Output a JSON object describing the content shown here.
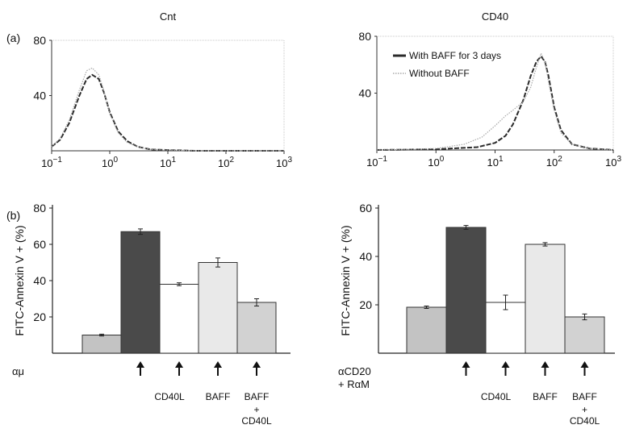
{
  "panel_labels": {
    "a": "(a)",
    "b": "(b)"
  },
  "chart_data": [
    {
      "type": "line",
      "title": "Cnt",
      "xscale": "log",
      "xlim": [
        0.1,
        1000
      ],
      "ylim": [
        0,
        80
      ],
      "x_ticks": [
        {
          "v": 0.1,
          "b": "10",
          "e": "−1"
        },
        {
          "v": 1,
          "b": "10",
          "e": "0"
        },
        {
          "v": 10,
          "b": "10",
          "e": "1"
        },
        {
          "v": 100,
          "b": "10",
          "e": "2"
        },
        {
          "v": 1000,
          "b": "10",
          "e": "3"
        }
      ],
      "y_ticks": [
        "40",
        "80"
      ],
      "series": [
        {
          "style": "dark",
          "x": [
            0.1,
            0.14,
            0.2,
            0.3,
            0.4,
            0.5,
            0.65,
            0.8,
            1.0,
            1.4,
            2.0,
            3.0,
            5.0,
            10,
            30,
            1000
          ],
          "y": [
            3,
            8,
            20,
            40,
            52,
            55,
            52,
            42,
            28,
            14,
            7,
            3,
            1,
            0.5,
            0,
            0
          ]
        },
        {
          "style": "light",
          "x": [
            0.1,
            0.14,
            0.2,
            0.3,
            0.4,
            0.5,
            0.65,
            0.8,
            1.0,
            1.4,
            2.0,
            3.0,
            5.0,
            10,
            30,
            1000
          ],
          "y": [
            3,
            9,
            22,
            44,
            58,
            60,
            55,
            43,
            27,
            13,
            6,
            3,
            1,
            0.5,
            0,
            0
          ]
        }
      ]
    },
    {
      "type": "line",
      "title": "CD40",
      "xscale": "log",
      "xlim": [
        0.1,
        1000
      ],
      "ylim": [
        0,
        80
      ],
      "x_ticks": [
        {
          "v": 0.1,
          "b": "10",
          "e": "−1"
        },
        {
          "v": 1,
          "b": "10",
          "e": "0"
        },
        {
          "v": 10,
          "b": "10",
          "e": "1"
        },
        {
          "v": 100,
          "b": "10",
          "e": "2"
        },
        {
          "v": 1000,
          "b": "10",
          "e": "3"
        }
      ],
      "y_ticks": [
        "40",
        "80"
      ],
      "legend": [
        "With BAFF for 3 days",
        "Without BAFF"
      ],
      "series": [
        {
          "name": "With BAFF for 3 days",
          "style": "dark",
          "x": [
            0.1,
            1,
            5,
            10,
            15,
            20,
            30,
            40,
            50,
            60,
            70,
            80,
            100,
            130,
            200,
            400,
            1000
          ],
          "y": [
            0,
            0.5,
            2,
            5,
            10,
            18,
            35,
            52,
            62,
            66,
            62,
            52,
            30,
            14,
            4,
            1,
            0
          ]
        },
        {
          "name": "Without BAFF",
          "style": "light",
          "x": [
            0.1,
            1,
            3,
            6,
            10,
            15,
            20,
            30,
            40,
            50,
            60,
            70,
            80,
            100,
            130,
            200,
            400,
            1000
          ],
          "y": [
            0,
            1,
            4,
            9,
            17,
            24,
            28,
            34,
            44,
            58,
            68,
            62,
            48,
            28,
            12,
            4,
            1,
            0
          ]
        }
      ]
    },
    {
      "type": "bar",
      "ylabel": "FITC-Annexin V + (%)",
      "ylim": [
        0,
        80
      ],
      "y_ticks": [
        20,
        40,
        60,
        80
      ],
      "row_label": "αμ",
      "bars": [
        {
          "value": 10,
          "error": 0.5,
          "fill": "#c3c3c3",
          "arrow": false
        },
        {
          "value": 67,
          "error": 1.5,
          "fill": "#4a4a4a",
          "arrow": true
        },
        {
          "value": 38,
          "error": 0.8,
          "fill": "#ffffff",
          "arrow": true
        },
        {
          "value": 50,
          "error": 2.5,
          "fill": "#e9e9e9",
          "arrow": true
        },
        {
          "value": 28,
          "error": 2.0,
          "fill": "#d2d2d2",
          "arrow": true
        }
      ],
      "category_labels": [
        "CD40L",
        "BAFF",
        "BAFF"
      ],
      "combo_label": [
        "+",
        "CD40L"
      ]
    },
    {
      "type": "bar",
      "ylabel": "FITC-Annexin V + (%)",
      "ylim": [
        0,
        60
      ],
      "y_ticks": [
        20,
        40,
        60
      ],
      "row_label": [
        "αCD20",
        "+ RαM"
      ],
      "bars": [
        {
          "value": 19,
          "error": 0.5,
          "fill": "#c3c3c3",
          "arrow": false
        },
        {
          "value": 52,
          "error": 0.8,
          "fill": "#4a4a4a",
          "arrow": true
        },
        {
          "value": 21,
          "error": 3.0,
          "fill": "#ffffff",
          "arrow": true
        },
        {
          "value": 45,
          "error": 0.7,
          "fill": "#e9e9e9",
          "arrow": true
        },
        {
          "value": 15,
          "error": 1.2,
          "fill": "#d2d2d2",
          "arrow": true
        }
      ],
      "category_labels": [
        "CD40L",
        "BAFF",
        "BAFF"
      ],
      "combo_label": [
        "+",
        "CD40L"
      ]
    }
  ]
}
